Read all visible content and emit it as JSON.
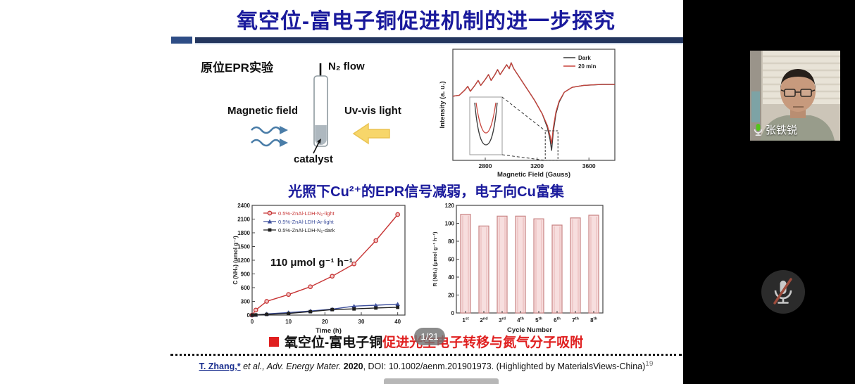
{
  "slide": {
    "title": "氧空位-富电子铜促进机制的进一步探究",
    "epr_diagram": {
      "heading": "原位EPR实验",
      "n2_flow_label": "N₂ flow",
      "magnetic_field_label": "Magnetic field",
      "uv_light_label": "Uv-vis light",
      "catalyst_label": "catalyst"
    },
    "epr_finding": "光照下Cu²⁺的EPR信号减弱，电子向Cu富集",
    "conclusion": {
      "subject": "氧空位-富电子铜",
      "effect": "促进光生电子转移与氮气分子吸附"
    },
    "footer": {
      "author": "T. Zhang,*",
      "etal": " et al., ",
      "journal": "Adv. Energy Mater. ",
      "year": "2020",
      "rest": ", DOI: 10.1002/aenm.201901973. (Highlighted by MaterialsViews-China)",
      "page_number": "19"
    }
  },
  "chart_data": [
    {
      "type": "line",
      "name": "epr-spectra",
      "xlabel": "Magnetic Field (Gauss)",
      "ylabel": "Intensity (a. u.)",
      "xlim": [
        2550,
        3800
      ],
      "x_ticks": [
        2800,
        3200,
        3600
      ],
      "legend": [
        "Dark",
        "20 min"
      ],
      "colors": [
        "#3a3a3a",
        "#c8433b"
      ],
      "note": "Cu2+ EPR signal: structured maximum near 3000 G, sharp negative dip at ~3310 G; 20 min illumination dip shallower than Dark; inset magnifies the dip",
      "x": [
        2550,
        2600,
        2640,
        2665,
        2685,
        2720,
        2745,
        2765,
        2800,
        2825,
        2845,
        2875,
        2895,
        2915,
        2945,
        2965,
        2985,
        3000,
        3020,
        3060,
        3120,
        3180,
        3240,
        3280,
        3300,
        3312,
        3325,
        3345,
        3370,
        3410,
        3470,
        3560,
        3700,
        3800
      ],
      "dark_y": [
        0.42,
        0.41,
        0.36,
        0.32,
        0.37,
        0.31,
        0.26,
        0.31,
        0.25,
        0.2,
        0.26,
        0.2,
        0.15,
        0.2,
        0.14,
        0.1,
        0.14,
        0.08,
        0.14,
        0.22,
        0.34,
        0.46,
        0.6,
        0.74,
        0.86,
        0.97,
        0.78,
        0.6,
        0.48,
        0.38,
        0.33,
        0.31,
        0.3,
        0.3
      ],
      "light_y": [
        0.42,
        0.41,
        0.36,
        0.32,
        0.37,
        0.31,
        0.26,
        0.31,
        0.25,
        0.2,
        0.26,
        0.2,
        0.15,
        0.2,
        0.14,
        0.1,
        0.14,
        0.08,
        0.14,
        0.22,
        0.34,
        0.46,
        0.6,
        0.72,
        0.82,
        0.9,
        0.74,
        0.58,
        0.47,
        0.38,
        0.33,
        0.31,
        0.3,
        0.3
      ]
    },
    {
      "type": "line",
      "name": "nh3-production-kinetics",
      "xlabel": "Time (h)",
      "ylabel": "C (NH₃) (μmol g⁻¹)",
      "xlim": [
        0,
        42
      ],
      "ylim": [
        0,
        2400
      ],
      "x_ticks": [
        0,
        10,
        20,
        30,
        40
      ],
      "y_tick_step": 300,
      "annotation": "110 μmol g⁻¹ h⁻¹",
      "series": [
        {
          "name": "0.5%-ZnAl-LDH-N₂-light",
          "color": "#c73535",
          "marker": "circle",
          "x": [
            0,
            1,
            4,
            10,
            16,
            22,
            28,
            34,
            40
          ],
          "y": [
            0,
            110,
            300,
            450,
            620,
            850,
            1120,
            1630,
            2200
          ]
        },
        {
          "name": "0.5%-ZnAl-LDH-Ar-light",
          "color": "#3d4f9d",
          "marker": "triangle",
          "x": [
            0,
            1,
            4,
            10,
            16,
            22,
            28,
            34,
            40
          ],
          "y": [
            0,
            5,
            25,
            55,
            90,
            130,
            195,
            215,
            240
          ]
        },
        {
          "name": "0.5%-ZnAl-LDH-N₂-dark",
          "color": "#1f1f1f",
          "marker": "square",
          "x": [
            0,
            1,
            4,
            10,
            16,
            22,
            28,
            34,
            40
          ],
          "y": [
            0,
            3,
            15,
            35,
            75,
            120,
            135,
            155,
            170
          ]
        }
      ]
    },
    {
      "type": "bar",
      "name": "cycling-stability",
      "categories": [
        "1st",
        "2nd",
        "3rd",
        "4th",
        "5th",
        "6th",
        "7th",
        "8th"
      ],
      "values": [
        110,
        97,
        108,
        108,
        105,
        98,
        106,
        109
      ],
      "xlabel": "Cycle Number",
      "ylabel": "R (NH₃) (μmol g⁻¹ h⁻¹)",
      "ylim": [
        0,
        120
      ],
      "y_tick_step": 20,
      "bar_fill": "#f7dede",
      "bar_edge": "#c98484",
      "bar_inner": "#eec3c3"
    }
  ],
  "meeting": {
    "participant_name": "张铁锐",
    "slide_indicator": "1/21",
    "mic_muted": true,
    "colors": {
      "mic_active": "#52c41a",
      "mic_muted_slash": "#9e4c3c"
    }
  }
}
